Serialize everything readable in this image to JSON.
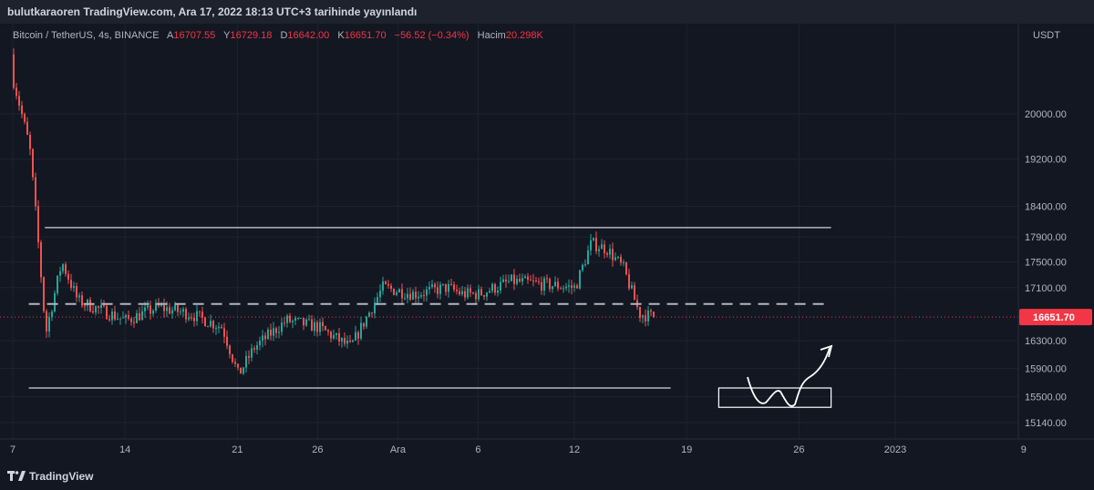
{
  "header": {
    "published_by": "bulutkaraoren TradingView.com, Ara 17, 2022 18:13 UTC+3 tarihinde yayınlandı"
  },
  "legend": {
    "symbol": "Bitcoin / TetherUS, 4s, BINANCE",
    "o_label": "A",
    "o_value": "16707.55",
    "h_label": "Y",
    "h_value": "16729.18",
    "l_label": "D",
    "l_value": "16642.00",
    "c_label": "K",
    "c_value": "16651.70",
    "change": "−56.52 (−0.34%)",
    "vol_label": "Hacim",
    "vol_value": "20.298K"
  },
  "footer": {
    "brand": "TradingView"
  },
  "colors": {
    "up": "#26a69a",
    "down": "#ef5350",
    "background": "#131722",
    "grid": "#1f2330",
    "price_tag": "#f23645"
  },
  "chart_data": {
    "type": "candlestick",
    "symbol": "Bitcoin / TetherUS",
    "interval": "4s",
    "exchange": "BINANCE",
    "currency_label": "USDT",
    "y_scale": "log",
    "y_ticks": [
      "20000.00",
      "19200.00",
      "18400.00",
      "17900.00",
      "17500.00",
      "17100.00",
      "16300.00",
      "15900.00",
      "15500.00",
      "15140.00"
    ],
    "x_ticks": [
      "7",
      "14",
      "21",
      "26",
      "Ara",
      "6",
      "12",
      "19",
      "26",
      "2023",
      "9"
    ],
    "last_price": "16651.70",
    "approx_close_path": [
      {
        "date": "2022-11-07",
        "close": 20600
      },
      {
        "date": "2022-11-08",
        "close": 19400
      },
      {
        "date": "2022-11-09",
        "close": 16400
      },
      {
        "date": "2022-11-10",
        "close": 17500
      },
      {
        "date": "2022-11-11",
        "close": 16900
      },
      {
        "date": "2022-11-12",
        "close": 16800
      },
      {
        "date": "2022-11-14",
        "close": 16600
      },
      {
        "date": "2022-11-16",
        "close": 16800
      },
      {
        "date": "2022-11-18",
        "close": 16700
      },
      {
        "date": "2022-11-20",
        "close": 16500
      },
      {
        "date": "2022-11-21",
        "close": 15800
      },
      {
        "date": "2022-11-22",
        "close": 16200
      },
      {
        "date": "2022-11-24",
        "close": 16600
      },
      {
        "date": "2022-11-26",
        "close": 16500
      },
      {
        "date": "2022-11-28",
        "close": 16200
      },
      {
        "date": "2022-11-30",
        "close": 17100
      },
      {
        "date": "2022-12-02",
        "close": 17000
      },
      {
        "date": "2022-12-04",
        "close": 17100
      },
      {
        "date": "2022-12-05",
        "close": 17000
      },
      {
        "date": "2022-12-06",
        "close": 17000
      },
      {
        "date": "2022-12-08",
        "close": 17200
      },
      {
        "date": "2022-12-10",
        "close": 17150
      },
      {
        "date": "2022-12-12",
        "close": 17100
      },
      {
        "date": "2022-12-13",
        "close": 17800
      },
      {
        "date": "2022-12-14",
        "close": 17700
      },
      {
        "date": "2022-12-15",
        "close": 17400
      },
      {
        "date": "2022-12-16",
        "close": 16700
      },
      {
        "date": "2022-12-17",
        "close": 16651.7
      }
    ],
    "drawings": [
      {
        "kind": "horizontal_line",
        "style": "solid",
        "price": 18050,
        "from": "2022-11-09",
        "to": "2022-12-28"
      },
      {
        "kind": "horizontal_line",
        "style": "dashed",
        "price": 16850,
        "from": "2022-11-08",
        "to": "2022-12-28"
      },
      {
        "kind": "horizontal_line",
        "style": "solid",
        "price": 15620,
        "from": "2022-11-08",
        "to": "2022-12-18"
      },
      {
        "kind": "rectangle",
        "price_top": 15620,
        "price_bottom": 15350,
        "from": "2022-12-21",
        "to": "2022-12-28"
      },
      {
        "kind": "arrow_path",
        "description": "projected W bottom then up"
      }
    ]
  }
}
